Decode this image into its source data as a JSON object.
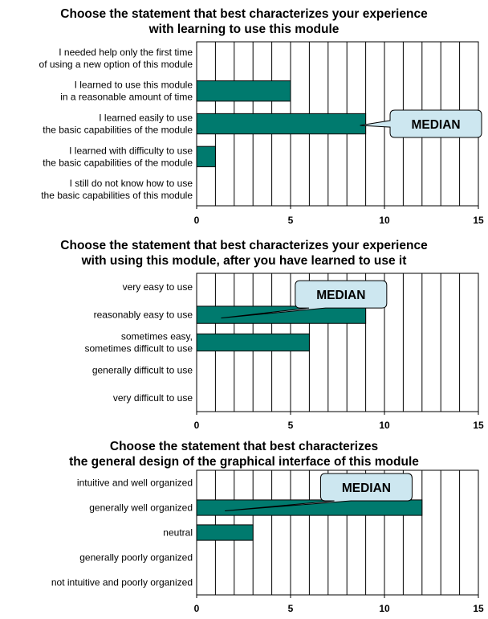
{
  "chart_data": [
    {
      "type": "bar",
      "orientation": "horizontal",
      "title": [
        "Choose the statement that best characterizes your experience",
        "with learning to use this module"
      ],
      "categories": [
        [
          "I needed help only the first time",
          "of using a new option of this module"
        ],
        [
          "I learned to use this module",
          "in a reasonable amount of time"
        ],
        [
          "I learned easily to use",
          "the basic capabilities of the module"
        ],
        [
          "I learned with difficulty to use",
          "the basic capabilities of the module"
        ],
        [
          "I still do not know how to use",
          "the basic capabilities of this module"
        ]
      ],
      "values": [
        0,
        5,
        9,
        1,
        0
      ],
      "xlim": [
        0,
        15
      ],
      "xticks": [
        0,
        5,
        10,
        15
      ],
      "grid": "vertical, every 1",
      "bar_color": "#007a6e",
      "annotation": {
        "text": "MEDIAN",
        "category_index": 2,
        "fill": "#cde7f0"
      }
    },
    {
      "type": "bar",
      "orientation": "horizontal",
      "title": [
        "Choose the statement that best characterizes your experience",
        "with using this module, after you have learned to use it"
      ],
      "categories": [
        [
          "very easy to use"
        ],
        [
          "reasonably easy to use"
        ],
        [
          "sometimes easy,",
          "sometimes difficult to use"
        ],
        [
          "generally difficult to use"
        ],
        [
          "very difficult to use"
        ]
      ],
      "values": [
        0,
        9,
        6,
        0,
        0
      ],
      "xlim": [
        0,
        15
      ],
      "xticks": [
        0,
        5,
        10,
        15
      ],
      "grid": "vertical, every 1",
      "bar_color": "#007a6e",
      "annotation": {
        "text": "MEDIAN",
        "category_index": 1,
        "fill": "#cde7f0"
      }
    },
    {
      "type": "bar",
      "orientation": "horizontal",
      "title": [
        "Choose the statement that best characterizes",
        "the general design of the graphical interface of this module"
      ],
      "categories": [
        [
          "intuitive and well organized"
        ],
        [
          "generally well organized"
        ],
        [
          "neutral"
        ],
        [
          "generally poorly organized"
        ],
        [
          "not intuitive and poorly organized"
        ]
      ],
      "values": [
        0,
        12,
        3,
        0,
        0
      ],
      "xlim": [
        0,
        15
      ],
      "xticks": [
        0,
        5,
        10,
        15
      ],
      "grid": "vertical, every 1",
      "bar_color": "#007a6e",
      "annotation": {
        "text": "MEDIAN",
        "category_index": 1,
        "fill": "#cde7f0"
      }
    }
  ]
}
